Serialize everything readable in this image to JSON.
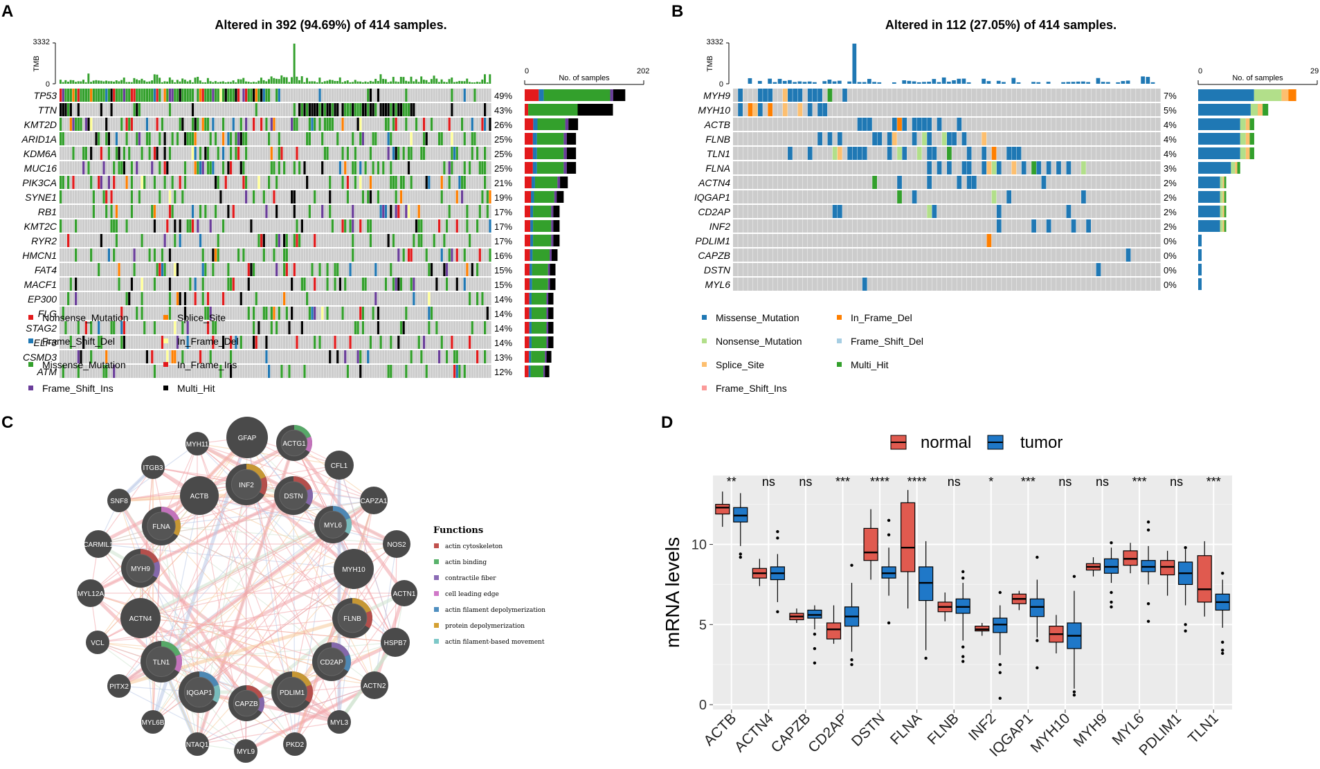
{
  "colors": {
    "missense": "#33a02c",
    "missense_b": "#1f78b4",
    "nonsense": "#e31a1c",
    "nonsense_b": "#b2df8a",
    "fs_del": "#1f78b4",
    "fs_del_b": "#a6cee3",
    "splice": "#ff7f00",
    "splice_b": "#fdbf6f",
    "in_del": "#ffff99",
    "in_del_b": "#ff7f00",
    "in_ins": "#e31a1c",
    "fs_ins": "#6a3d9a",
    "fs_ins_b": "#fb9a99",
    "multi": "#000000",
    "multi_b": "#33a02c",
    "grey": "#cccccc",
    "normal": "#e05a4f",
    "tumor": "#1f78c8"
  },
  "panelA": {
    "letter": "A",
    "title": "Altered in 392 (94.69%) of 414 samples.",
    "tmb_label": "TMB",
    "tmb_max": "3332",
    "tmb_min": "0",
    "side_axis_min": "0",
    "side_axis_max": "202",
    "side_axis_label": "No. of samples",
    "genes": [
      "TP53",
      "TTN",
      "KMT2D",
      "ARID1A",
      "KDM6A",
      "MUC16",
      "PIK3CA",
      "SYNE1",
      "RB1",
      "KMT2C",
      "RYR2",
      "HMCN1",
      "FAT4",
      "MACF1",
      "EP300",
      "FLG",
      "STAG2",
      "ELF3",
      "CSMD3",
      "ATM"
    ],
    "pcts": [
      "49%",
      "43%",
      "26%",
      "25%",
      "25%",
      "25%",
      "21%",
      "19%",
      "17%",
      "17%",
      "17%",
      "16%",
      "15%",
      "15%",
      "14%",
      "14%",
      "14%",
      "14%",
      "13%",
      "12%"
    ],
    "legend": [
      "Nonsense_Mutation",
      "Splice_Site",
      "Frame_Shift_Del",
      "In_Frame_Del",
      "Missense_Mutation",
      "In_Frame_Ins",
      "Frame_Shift_Ins",
      "Multi_Hit"
    ]
  },
  "panelB": {
    "letter": "B",
    "title": "Altered in 112 (27.05%) of 414 samples.",
    "tmb_label": "TMB",
    "tmb_max": "3332",
    "tmb_min": "0",
    "side_axis_min": "0",
    "side_axis_max": "29",
    "side_axis_label": "No. of samples",
    "genes": [
      "MYH9",
      "MYH10",
      "ACTB",
      "FLNB",
      "TLN1",
      "FLNA",
      "ACTN4",
      "IQGAP1",
      "CD2AP",
      "INF2",
      "PDLIM1",
      "CAPZB",
      "DSTN",
      "MYL6"
    ],
    "pcts": [
      "7%",
      "5%",
      "4%",
      "4%",
      "4%",
      "3%",
      "2%",
      "2%",
      "2%",
      "2%",
      "0%",
      "0%",
      "0%",
      "0%"
    ],
    "legend": [
      "Missense_Mutation",
      "In_Frame_Del",
      "Nonsense_Mutation",
      "Frame_Shift_Del",
      "Splice_Site",
      "Multi_Hit",
      "Frame_Shift_Ins"
    ]
  },
  "panelC": {
    "letter": "C",
    "functions_title": "Functions",
    "functions": [
      "actin cytoskeleton",
      "actin binding",
      "contractile fiber",
      "cell leading edge",
      "actin filament depolymerization",
      "protein depolymerization",
      "actin filament-based movement"
    ],
    "function_colors": [
      "#c0504d",
      "#59b26b",
      "#8b6bb5",
      "#d078c8",
      "#4f8fc0",
      "#d4a032",
      "#7dc8c8"
    ],
    "nodes": [
      "GFAP",
      "ACTG1",
      "MYH11",
      "CFL1",
      "ITGB3",
      "INF2",
      "ACTB",
      "DSTN",
      "CAPZA1",
      "SNF8",
      "FLNA",
      "MYL6",
      "NOS2",
      "CARMIL1",
      "MYH9",
      "MYH10",
      "ACTN1",
      "MYL12A",
      "ACTN4",
      "FLNB",
      "VCL",
      "HSPB7",
      "TLN1",
      "CD2AP",
      "PITX2",
      "IQGAP1",
      "PDLIM1",
      "ACTN2",
      "CAPZB",
      "MYL6B",
      "MYL3",
      "NTAQ1",
      "MYL9",
      "PKD2"
    ]
  },
  "panelD": {
    "letter": "D",
    "legend_normal": "normal",
    "legend_tumor": "tumor",
    "ylabel": "mRNA levels",
    "yticks": [
      "0",
      "5",
      "10"
    ]
  },
  "chart_data": {
    "type": "box",
    "title": "",
    "xlabel": "",
    "ylabel": "mRNA levels",
    "ylim": [
      -0.3,
      14.3
    ],
    "categories": [
      "ACTB",
      "ACTN4",
      "CAPZB",
      "CD2AP",
      "DSTN",
      "FLNA",
      "FLNB",
      "INF2",
      "IQGAP1",
      "MYH10",
      "MYH9",
      "MYL6",
      "PDLIM1",
      "TLN1"
    ],
    "significance": [
      "**",
      "ns",
      "ns",
      "***",
      "****",
      "****",
      "ns",
      "*",
      "***",
      "ns",
      "ns",
      "***",
      "ns",
      "***"
    ],
    "series": [
      {
        "name": "normal",
        "stats": [
          [
            11.1,
            11.9,
            12.3,
            12.5,
            13.3
          ],
          [
            7.4,
            7.9,
            8.2,
            8.5,
            9.1
          ],
          [
            5.1,
            5.3,
            5.5,
            5.7,
            6.0
          ],
          [
            3.8,
            4.1,
            4.7,
            5.1,
            6.2
          ],
          [
            7.8,
            9.0,
            9.5,
            11.0,
            12.2
          ],
          [
            6.0,
            8.3,
            9.8,
            12.6,
            13.4
          ],
          [
            5.2,
            5.8,
            6.1,
            6.4,
            7.0
          ],
          [
            4.3,
            4.6,
            4.7,
            4.9,
            5.1
          ],
          [
            5.9,
            6.3,
            6.6,
            6.9,
            7.1
          ],
          [
            3.2,
            3.9,
            4.4,
            4.9,
            5.6
          ],
          [
            8.0,
            8.4,
            8.6,
            8.8,
            9.2
          ],
          [
            8.2,
            8.7,
            9.1,
            9.6,
            10.1
          ],
          [
            6.8,
            8.1,
            8.6,
            9.0,
            9.6
          ],
          [
            5.5,
            6.4,
            7.2,
            9.3,
            10.2
          ]
        ]
      },
      {
        "name": "tumor",
        "stats": [
          [
            9.9,
            11.4,
            11.8,
            12.3,
            13.2
          ],
          [
            6.4,
            7.8,
            8.2,
            8.6,
            9.4
          ],
          [
            4.7,
            5.4,
            5.6,
            5.9,
            6.2
          ],
          [
            3.3,
            4.9,
            5.5,
            6.1,
            7.6
          ],
          [
            6.8,
            7.9,
            8.2,
            8.6,
            9.8
          ],
          [
            3.4,
            6.5,
            7.6,
            8.6,
            10.2
          ],
          [
            4.0,
            5.7,
            6.1,
            6.6,
            7.6
          ],
          [
            3.1,
            4.5,
            5.0,
            5.4,
            6.2
          ],
          [
            4.2,
            5.5,
            6.1,
            6.6,
            7.8
          ],
          [
            1.0,
            3.5,
            4.3,
            5.1,
            7.1
          ],
          [
            7.6,
            8.2,
            8.6,
            9.1,
            9.8
          ],
          [
            7.5,
            8.3,
            8.6,
            9.0,
            9.9
          ],
          [
            6.2,
            7.5,
            8.2,
            8.9,
            9.7
          ],
          [
            4.8,
            5.9,
            6.4,
            6.9,
            7.8
          ]
        ]
      }
    ],
    "outliers_tumor": [
      [
        9.2,
        9.4
      ],
      [
        10.8,
        5.8,
        10.4
      ],
      [
        4.4,
        3.5,
        2.6
      ],
      [
        2.8,
        2.5,
        8.7
      ],
      [
        5.1,
        10.6,
        11.5
      ],
      [
        2.9
      ],
      [
        3.0,
        2.7,
        3.6,
        7.9,
        8.3
      ],
      [
        2.0,
        2.5,
        0.4,
        7.0
      ],
      [
        2.3,
        4.0,
        9.2
      ],
      [
        0.6,
        0.8,
        8.0
      ],
      [
        6.1,
        6.4,
        10.1,
        7.0
      ],
      [
        5.2,
        11.4,
        10.9,
        6.3
      ],
      [
        5.0,
        4.6,
        9.8
      ],
      [
        3.2,
        3.4,
        3.9,
        8.2
      ]
    ]
  }
}
